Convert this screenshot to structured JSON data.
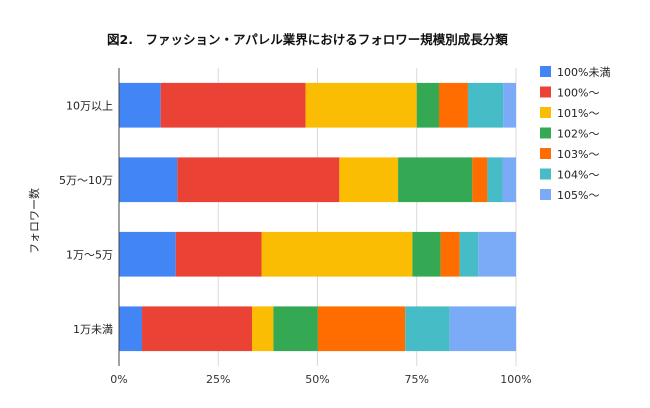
{
  "chart_data": {
    "type": "bar",
    "orientation": "horizontal",
    "stacked": "percent",
    "title": "図2.　ファッション・アパレル業界におけるフォロワー規模別成長分類",
    "xlabel": "",
    "ylabel": "フォロワー数",
    "xlim": [
      0,
      100
    ],
    "x_ticks": [
      "0%",
      "25%",
      "50%",
      "75%",
      "100%"
    ],
    "grid": "vertical",
    "legend_position": "right",
    "categories": [
      "10万以上",
      "5万〜10万",
      "1万〜5万",
      "1万未満"
    ],
    "series": [
      {
        "name": "100%未満",
        "color": "#4285F4",
        "values": [
          10.5,
          14.7,
          14.3,
          5.8
        ]
      },
      {
        "name": "100%〜",
        "color": "#EA4335",
        "values": [
          36.5,
          40.8,
          21.6,
          27.7
        ]
      },
      {
        "name": "101%〜",
        "color": "#FBBC04",
        "values": [
          28.0,
          14.8,
          38.0,
          5.4
        ]
      },
      {
        "name": "102%〜",
        "color": "#34A853",
        "values": [
          5.6,
          18.7,
          7.1,
          11.2
        ]
      },
      {
        "name": "103%〜",
        "color": "#FF6D01",
        "values": [
          7.3,
          3.8,
          4.8,
          22.0
        ]
      },
      {
        "name": "104%〜",
        "color": "#46BDC6",
        "values": [
          8.9,
          3.8,
          4.7,
          11.2
        ]
      },
      {
        "name": "105%〜",
        "color": "#7BAAF7",
        "values": [
          3.2,
          3.4,
          9.5,
          16.7
        ]
      }
    ]
  }
}
